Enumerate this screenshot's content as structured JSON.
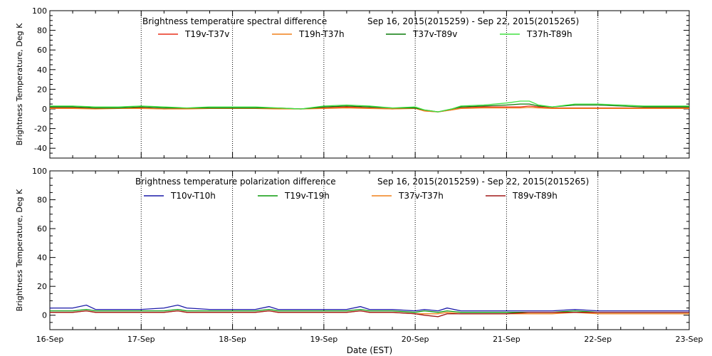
{
  "xlabel": "Date (EST)",
  "x_ticks": [
    "16-Sep",
    "17-Sep",
    "18-Sep",
    "19-Sep",
    "20-Sep",
    "21-Sep",
    "22-Sep",
    "23-Sep"
  ],
  "chart_data": [
    {
      "type": "line",
      "title": "Brightness temperature spectral difference",
      "date_range": "Sep 16, 2015(2015259) - Sep 22, 2015(2015265)",
      "ylabel": "Brightness Temperature, Deg K",
      "ylim": [
        -50,
        100
      ],
      "yticks": [
        -40,
        -20,
        0,
        20,
        40,
        60,
        80,
        100
      ],
      "xlim": [
        0,
        7
      ],
      "grid": "vertical dotted lines at each day",
      "legend": "top, horizontal",
      "x": [
        0,
        0.25,
        0.5,
        0.75,
        1,
        1.25,
        1.5,
        1.75,
        2,
        2.25,
        2.5,
        2.75,
        3,
        3.25,
        3.5,
        3.75,
        4,
        4.1,
        4.25,
        4.4,
        4.5,
        4.75,
        5,
        5.15,
        5.25,
        5.35,
        5.5,
        5.75,
        6,
        6.25,
        6.5,
        6.7,
        6.75,
        7
      ],
      "series": [
        {
          "name": "T19v-T37v",
          "color": "#e8301c",
          "values": [
            1,
            1,
            0.5,
            1,
            1,
            0,
            0.5,
            1,
            1,
            1,
            0.5,
            0,
            1,
            2,
            1,
            0,
            1,
            -2,
            -3,
            -1,
            1,
            2,
            2,
            2,
            3,
            2,
            1,
            1,
            1,
            1,
            1,
            1,
            1,
            1
          ]
        },
        {
          "name": "T19h-T37h",
          "color": "#f0801a",
          "values": [
            0.5,
            0.5,
            0,
            0.5,
            0.5,
            0,
            0,
            0.5,
            0.5,
            0.5,
            0,
            0,
            0.5,
            1,
            0.5,
            0,
            0.5,
            -2,
            -3,
            -1,
            0.5,
            1,
            1,
            1,
            1.5,
            1,
            0.5,
            0.5,
            0.5,
            0.5,
            0.5,
            0.5,
            0.5,
            0.5
          ]
        },
        {
          "name": "T37v-T89v",
          "color": "#0a7a0a",
          "values": [
            2,
            2,
            1,
            1,
            2,
            1,
            1,
            1,
            1,
            1,
            1,
            0,
            2,
            3,
            2,
            1,
            1,
            -1,
            -3,
            0,
            2,
            3,
            4,
            5,
            5,
            3,
            2,
            4,
            4,
            3,
            2,
            2,
            2,
            2
          ]
        },
        {
          "name": "T37h-T89h",
          "color": "#40e040",
          "values": [
            3,
            3,
            2,
            2,
            3,
            2,
            1,
            2,
            2,
            2,
            1,
            0,
            3,
            4,
            3,
            1,
            2,
            -1,
            -3,
            0,
            3,
            4,
            6,
            8,
            8,
            4,
            2,
            5,
            5,
            4,
            3,
            3,
            3,
            3
          ]
        }
      ]
    },
    {
      "type": "line",
      "title": "Brightness temperature polarization difference",
      "date_range": "Sep 16, 2015(2015259) - Sep 22, 2015(2015265)",
      "ylabel": "Brightness Temperature, Deg K",
      "ylim": [
        -10,
        100
      ],
      "yticks": [
        0,
        20,
        40,
        60,
        80,
        100
      ],
      "xlim": [
        0,
        7
      ],
      "grid": "vertical dotted lines at each day",
      "legend": "top, horizontal",
      "x": [
        0,
        0.25,
        0.4,
        0.5,
        0.75,
        1,
        1.25,
        1.4,
        1.5,
        1.75,
        2,
        2.25,
        2.4,
        2.5,
        2.75,
        3,
        3.25,
        3.4,
        3.5,
        3.75,
        4,
        4.1,
        4.25,
        4.35,
        4.5,
        4.75,
        5,
        5.25,
        5.5,
        5.75,
        6,
        6.25,
        6.45,
        6.7,
        6.75,
        7
      ],
      "series": [
        {
          "name": "T10v-T10h",
          "color": "#1a1aa8",
          "values": [
            5,
            5,
            7,
            4,
            4,
            4,
            5,
            7,
            5,
            4,
            4,
            4,
            6,
            4,
            4,
            4,
            4,
            6,
            4,
            4,
            3,
            4,
            3,
            5,
            3,
            3,
            3,
            3,
            3,
            4,
            3,
            3,
            3,
            3,
            3,
            3
          ]
        },
        {
          "name": "T19v-T19h",
          "color": "#0a9a0a",
          "values": [
            3,
            3,
            4,
            3,
            3,
            3,
            3,
            4,
            3,
            3,
            3,
            3,
            4,
            3,
            3,
            3,
            3,
            4,
            3,
            3,
            2,
            3,
            2,
            3,
            2,
            2,
            2,
            2,
            2,
            3,
            2,
            2,
            2,
            2,
            2,
            2
          ]
        },
        {
          "name": "T37v-T37h",
          "color": "#f0801a",
          "values": [
            2,
            2,
            3,
            2,
            2,
            2,
            2,
            3,
            2,
            2,
            2,
            2,
            3,
            2,
            2,
            2,
            2,
            3,
            2,
            2,
            1,
            1,
            1,
            2,
            1,
            1,
            1,
            1,
            1,
            2,
            1,
            1,
            1,
            1,
            1,
            1
          ]
        },
        {
          "name": "T89v-T89h",
          "color": "#a01818",
          "values": [
            2,
            2,
            3,
            2,
            2,
            2,
            2,
            3,
            2,
            2,
            2,
            2,
            3,
            2,
            2,
            2,
            2,
            3,
            2,
            2,
            1,
            0,
            -1,
            1,
            1,
            1,
            1,
            2,
            2,
            2,
            2,
            2,
            2,
            2,
            2,
            2
          ]
        }
      ]
    }
  ]
}
